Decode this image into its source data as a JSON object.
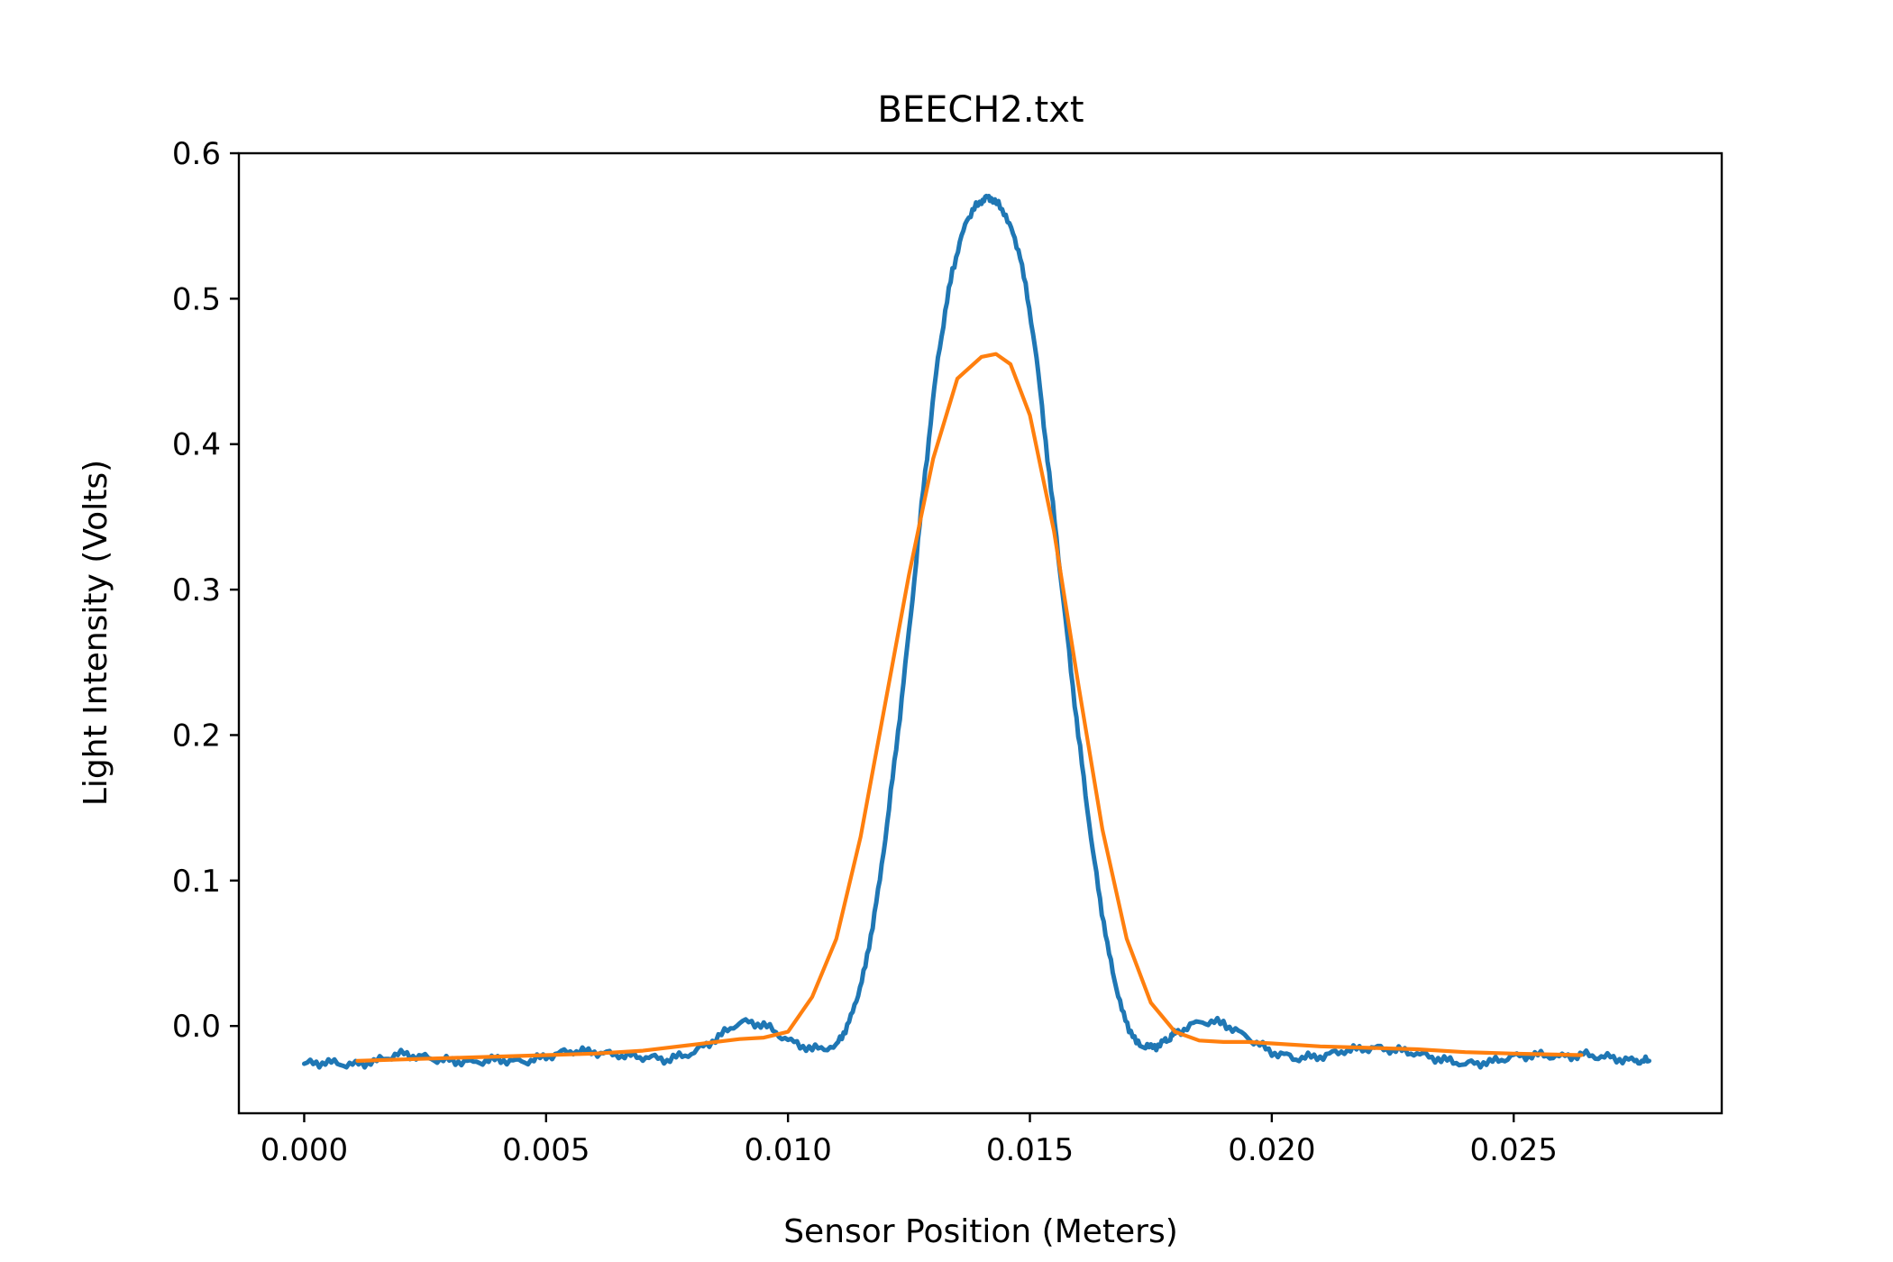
{
  "chart_data": {
    "type": "line",
    "title": "BEECH2.txt",
    "xlabel": "Sensor Position (Meters)",
    "ylabel": "Light Intensity (Volts)",
    "xlim": [
      -0.00135,
      0.0293
    ],
    "ylim": [
      -0.06,
      0.6
    ],
    "x_ticks": [
      0.0,
      0.005,
      0.01,
      0.015,
      0.02,
      0.025
    ],
    "x_tick_labels": [
      "0.000",
      "0.005",
      "0.010",
      "0.015",
      "0.020",
      "0.025"
    ],
    "y_ticks": [
      0.0,
      0.1,
      0.2,
      0.3,
      0.4,
      0.5,
      0.6
    ],
    "y_tick_labels": [
      "0.0",
      "0.1",
      "0.2",
      "0.3",
      "0.4",
      "0.5",
      "0.6"
    ],
    "grid": false,
    "legend": "none",
    "series": [
      {
        "color": "#1f77b4",
        "x": [
          0.0,
          0.0005,
          0.001,
          0.0015,
          0.002,
          0.0025,
          0.003,
          0.0035,
          0.004,
          0.0045,
          0.005,
          0.0055,
          0.006,
          0.0065,
          0.007,
          0.0075,
          0.008,
          0.0085,
          0.009,
          0.0095,
          0.01,
          0.0105,
          0.011,
          0.0113,
          0.0116,
          0.0119,
          0.0122,
          0.0125,
          0.0128,
          0.0131,
          0.0134,
          0.0137,
          0.014,
          0.0142,
          0.0145,
          0.0148,
          0.0151,
          0.0154,
          0.0157,
          0.016,
          0.0163,
          0.0166,
          0.0169,
          0.0172,
          0.0175,
          0.0178,
          0.018,
          0.0185,
          0.019,
          0.0195,
          0.02,
          0.0205,
          0.021,
          0.0215,
          0.022,
          0.0225,
          0.023,
          0.0235,
          0.024,
          0.0245,
          0.025,
          0.0255,
          0.026,
          0.0265,
          0.027,
          0.0275,
          0.0278
        ],
        "y": [
          -0.026,
          -0.025,
          -0.027,
          -0.024,
          -0.019,
          -0.022,
          -0.024,
          -0.025,
          -0.023,
          -0.025,
          -0.021,
          -0.017,
          -0.018,
          -0.02,
          -0.021,
          -0.023,
          -0.019,
          -0.009,
          0.003,
          0.001,
          -0.01,
          -0.016,
          -0.014,
          0.005,
          0.04,
          0.1,
          0.18,
          0.27,
          0.37,
          0.46,
          0.52,
          0.555,
          0.568,
          0.57,
          0.558,
          0.53,
          0.47,
          0.38,
          0.29,
          0.2,
          0.12,
          0.055,
          0.01,
          -0.012,
          -0.015,
          -0.011,
          -0.005,
          0.003,
          0.002,
          -0.008,
          -0.018,
          -0.022,
          -0.021,
          -0.017,
          -0.015,
          -0.016,
          -0.019,
          -0.023,
          -0.026,
          -0.025,
          -0.021,
          -0.02,
          -0.021,
          -0.02,
          -0.022,
          -0.024,
          -0.024
        ]
      },
      {
        "color": "#ff7f0e",
        "x": [
          0.0011,
          0.002,
          0.003,
          0.004,
          0.005,
          0.006,
          0.007,
          0.008,
          0.009,
          0.0095,
          0.01,
          0.0105,
          0.011,
          0.0115,
          0.012,
          0.0125,
          0.013,
          0.0135,
          0.014,
          0.0143,
          0.0146,
          0.015,
          0.0155,
          0.016,
          0.0165,
          0.017,
          0.0175,
          0.018,
          0.0185,
          0.019,
          0.0195,
          0.02,
          0.021,
          0.022,
          0.023,
          0.024,
          0.025,
          0.0264
        ],
        "y": [
          -0.024,
          -0.023,
          -0.022,
          -0.021,
          -0.02,
          -0.019,
          -0.017,
          -0.013,
          -0.009,
          -0.008,
          -0.004,
          0.02,
          0.06,
          0.13,
          0.22,
          0.31,
          0.39,
          0.445,
          0.46,
          0.462,
          0.455,
          0.42,
          0.34,
          0.235,
          0.135,
          0.06,
          0.016,
          -0.004,
          -0.01,
          -0.011,
          -0.011,
          -0.012,
          -0.014,
          -0.015,
          -0.016,
          -0.018,
          -0.019,
          -0.02
        ]
      }
    ]
  }
}
